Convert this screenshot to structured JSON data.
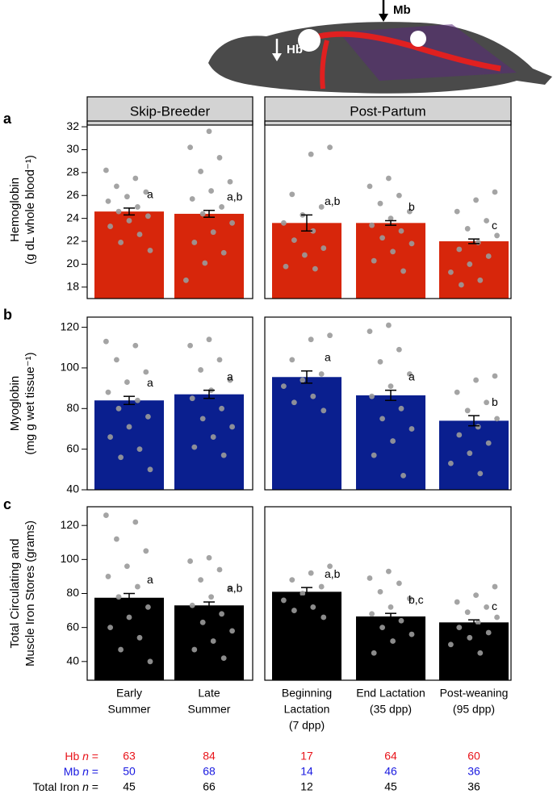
{
  "illustration_labels": {
    "hb": "Hb",
    "mb": "Mb"
  },
  "facets": [
    "Skip-Breeder",
    "Post-Partum"
  ],
  "x_categories": [
    [
      "Early",
      "Summer"
    ],
    [
      "Late",
      "Summer"
    ],
    [
      "Beginning",
      "Lactation",
      "(7 dpp)"
    ],
    [
      "End Lactation",
      "(35 dpp)"
    ],
    [
      "Post-weaning",
      "(95 dpp)"
    ]
  ],
  "sample_sizes": [
    {
      "label_parts": [
        "Hb ",
        "n",
        " ="
      ],
      "color": "#e8141a",
      "values": [
        63,
        84,
        17,
        64,
        60
      ]
    },
    {
      "label_parts": [
        "Mb ",
        "n",
        " ="
      ],
      "color": "#1a1ae0",
      "values": [
        50,
        68,
        14,
        46,
        36
      ]
    },
    {
      "label_parts": [
        "Total Iron ",
        "n",
        " ="
      ],
      "color": "#000000",
      "values": [
        45,
        66,
        12,
        45,
        36
      ]
    }
  ],
  "chart_data": [
    {
      "type": "bar",
      "panel_label": "a",
      "ylabel": [
        "Hemoglobin",
        "(g dL whole blood⁻¹)"
      ],
      "color": "#d7260b",
      "values": [
        24.6,
        24.4,
        23.6,
        23.6,
        22.0
      ],
      "errors": [
        0.3,
        0.3,
        0.7,
        0.2,
        0.2
      ],
      "annotations": [
        "a",
        "a,b",
        "a,b",
        "b",
        "c"
      ],
      "points": [
        [
          28.2,
          27.5,
          26.8,
          26.3,
          25.9,
          25.5,
          25.0,
          24.6,
          24.2,
          23.8,
          23.3,
          22.6,
          21.9,
          21.2
        ],
        [
          31.6,
          30.2,
          29.3,
          28.1,
          27.2,
          26.4,
          25.7,
          25.0,
          24.4,
          23.6,
          22.8,
          21.9,
          21.0,
          20.1,
          18.6
        ],
        [
          30.2,
          29.6,
          26.1,
          25.0,
          24.3,
          23.6,
          22.9,
          22.1,
          21.4,
          20.8,
          19.8,
          19.6
        ],
        [
          27.5,
          26.8,
          26.0,
          25.3,
          24.6,
          24.0,
          23.4,
          22.9,
          22.3,
          21.8,
          21.1,
          20.3,
          19.4
        ],
        [
          26.3,
          25.6,
          24.6,
          23.8,
          23.1,
          22.5,
          21.9,
          21.3,
          20.7,
          20.0,
          19.3,
          18.6,
          18.2
        ]
      ],
      "ylim": [
        17,
        32.5
      ],
      "yticks": [
        18,
        20,
        22,
        24,
        26,
        28,
        30,
        32
      ]
    },
    {
      "type": "bar",
      "panel_label": "b",
      "ylabel": [
        "Myoglobin",
        "(mg g wet tissue⁻¹)"
      ],
      "color": "#0a1f8f",
      "values": [
        84,
        87,
        95.5,
        86.5,
        74
      ],
      "errors": [
        2,
        2,
        3,
        2.5,
        2.5
      ],
      "annotations": [
        "a",
        "a",
        "a",
        "a",
        "b"
      ],
      "points": [
        [
          113,
          111,
          104,
          98,
          93,
          88,
          84,
          80,
          76,
          71,
          66,
          60,
          56,
          50
        ],
        [
          114,
          111,
          104,
          99,
          94,
          89,
          85,
          80,
          75,
          71,
          66,
          61,
          57
        ],
        [
          116,
          114,
          104,
          97,
          94,
          91,
          86,
          83,
          79
        ],
        [
          121,
          118,
          109,
          103,
          97,
          91,
          86,
          80,
          75,
          70,
          64,
          57,
          47
        ],
        [
          96,
          94,
          88,
          83,
          79,
          75,
          71,
          67,
          63,
          58,
          53,
          48
        ]
      ],
      "ylim": [
        40,
        125
      ],
      "yticks": [
        40,
        60,
        80,
        100,
        120
      ]
    },
    {
      "type": "bar",
      "panel_label": "c",
      "ylabel": [
        "Total Circulating and",
        "Muscle Iron Stores (grams)"
      ],
      "color": "#000000",
      "values": [
        77.5,
        73,
        81,
        66.5,
        63
      ],
      "errors": [
        2.5,
        2,
        2.5,
        1.8,
        1.5
      ],
      "annotations": [
        "a",
        "a,b",
        "a,b",
        "b,c",
        "c"
      ],
      "points": [
        [
          126,
          122,
          112,
          105,
          96,
          90,
          84,
          78,
          72,
          66,
          60,
          54,
          47,
          40
        ],
        [
          101,
          99,
          94,
          88,
          83,
          78,
          73,
          68,
          63,
          58,
          52,
          47,
          42
        ],
        [
          96,
          92,
          88,
          84,
          80,
          76,
          72,
          70,
          66
        ],
        [
          93,
          89,
          86,
          81,
          77,
          72,
          68,
          64,
          60,
          56,
          52,
          45
        ],
        [
          84,
          79,
          75,
          72,
          69,
          66,
          63,
          60,
          57,
          54,
          50,
          45
        ]
      ],
      "ylim": [
        29,
        131
      ],
      "yticks": [
        40,
        60,
        80,
        100,
        120
      ]
    }
  ]
}
